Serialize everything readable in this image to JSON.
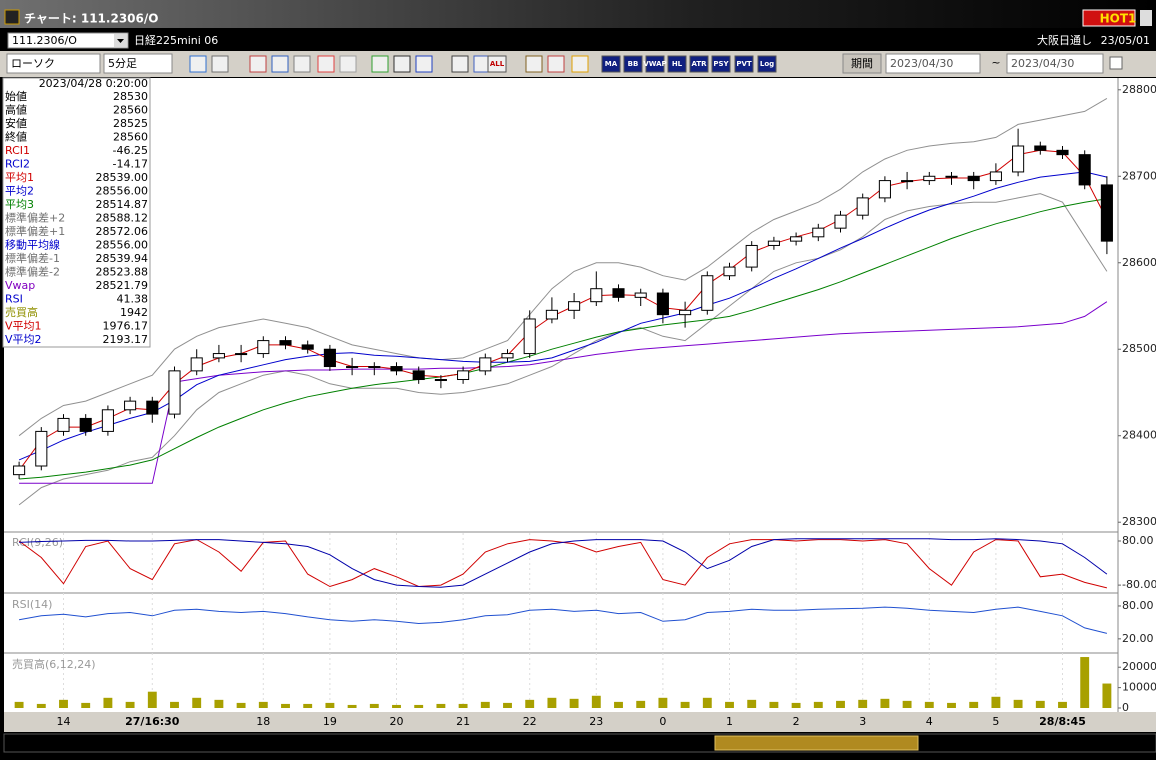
{
  "window": {
    "title": "チャート: 111.2306/O",
    "badge": "HOT1"
  },
  "symbol_bar": {
    "code": "111.2306/O",
    "name": "日経225mini 06",
    "session": "大阪日通し",
    "date": "23/05/01"
  },
  "toolbar": {
    "chart_style": "ローソク",
    "interval": "5分足",
    "buttons": [
      "ALL",
      "MA",
      "BB",
      "VWAP",
      "HL",
      "ATR",
      "PSY",
      "PVT",
      "Log"
    ],
    "period_button": "期間",
    "from": "2023/04/30",
    "separator": "~",
    "to": "2023/04/30"
  },
  "info_panel": {
    "time": "2023/04/28 0:20:00",
    "rows": [
      {
        "label": "始値",
        "value": "28530",
        "color": "#000000"
      },
      {
        "label": "高値",
        "value": "28560",
        "color": "#000000"
      },
      {
        "label": "安値",
        "value": "28525",
        "color": "#000000"
      },
      {
        "label": "終値",
        "value": "28560",
        "color": "#000000"
      },
      {
        "label": "RCI1",
        "value": "-46.25",
        "color": "#d00000"
      },
      {
        "label": "RCI2",
        "value": "-14.17",
        "color": "#0000cc"
      },
      {
        "label": "平均1",
        "value": "28539.00",
        "color": "#d00000"
      },
      {
        "label": "平均2",
        "value": "28556.00",
        "color": "#0000cc"
      },
      {
        "label": "平均3",
        "value": "28514.87",
        "color": "#008000"
      },
      {
        "label": "標準偏差+2",
        "value": "28588.12",
        "color": "#707070"
      },
      {
        "label": "標準偏差+1",
        "value": "28572.06",
        "color": "#707070"
      },
      {
        "label": "移動平均線",
        "value": "28556.00",
        "color": "#0000cc"
      },
      {
        "label": "標準偏差-1",
        "value": "28539.94",
        "color": "#707070"
      },
      {
        "label": "標準偏差-2",
        "value": "28523.88",
        "color": "#707070"
      },
      {
        "label": "Vwap",
        "value": "28521.79",
        "color": "#8000c0"
      },
      {
        "label": "RSI",
        "value": "41.38",
        "color": "#0000cc"
      },
      {
        "label": "売買高",
        "value": "1942",
        "color": "#909000"
      },
      {
        "label": "V平均1",
        "value": "1976.17",
        "color": "#d00000"
      },
      {
        "label": "V平均2",
        "value": "2193.17",
        "color": "#0000cc"
      }
    ]
  },
  "chart_data": [
    {
      "type": "candlestick",
      "categories": [
        null,
        null,
        "14",
        null,
        null,
        null,
        "27/16:30",
        null,
        null,
        null,
        null,
        "18",
        null,
        null,
        "19",
        null,
        null,
        "20",
        null,
        null,
        "21",
        null,
        null,
        "22",
        null,
        null,
        "23",
        null,
        null,
        "0",
        null,
        null,
        "1",
        null,
        null,
        "2",
        null,
        null,
        "3",
        null,
        null,
        "4",
        null,
        null,
        "5",
        null,
        null,
        "28/8:45",
        null,
        null
      ],
      "open": [
        28355,
        28365,
        28405,
        28420,
        28405,
        28430,
        28440,
        28425,
        28475,
        28490,
        28495,
        28495,
        28510,
        28505,
        28500,
        28480,
        28480,
        28480,
        28475,
        28465,
        28465,
        28475,
        28490,
        28495,
        28535,
        28545,
        28555,
        28570,
        28560,
        28565,
        28540,
        28545,
        28585,
        28595,
        28620,
        28625,
        28630,
        28640,
        28655,
        28675,
        28695,
        28695,
        28700,
        28700,
        28695,
        28705,
        28735,
        28730,
        28725,
        28690
      ],
      "high": [
        28370,
        28410,
        28425,
        28425,
        28435,
        28445,
        28445,
        28480,
        28500,
        28505,
        28505,
        28515,
        28515,
        28510,
        28505,
        28490,
        28485,
        28485,
        28480,
        28470,
        28480,
        28495,
        28500,
        28545,
        28560,
        28565,
        28590,
        28575,
        28570,
        28570,
        28555,
        28590,
        28600,
        28625,
        28630,
        28635,
        28645,
        28660,
        28680,
        28700,
        28705,
        28705,
        28705,
        28705,
        28715,
        28755,
        28740,
        28735,
        28730,
        28700
      ],
      "low": [
        28350,
        28360,
        28400,
        28400,
        28400,
        28425,
        28415,
        28420,
        28470,
        28485,
        28485,
        28490,
        28500,
        28495,
        28475,
        28470,
        28470,
        28470,
        28460,
        28455,
        28460,
        28470,
        28485,
        28490,
        28530,
        28535,
        28550,
        28555,
        28550,
        28530,
        28525,
        28540,
        28580,
        28590,
        28615,
        28620,
        28625,
        28635,
        28650,
        28670,
        28685,
        28690,
        28690,
        28685,
        28690,
        28700,
        28725,
        28720,
        28685,
        28610
      ],
      "close": [
        28365,
        28405,
        28420,
        28405,
        28430,
        28440,
        28425,
        28475,
        28490,
        28495,
        28495,
        28510,
        28505,
        28500,
        28480,
        28480,
        28480,
        28475,
        28465,
        28465,
        28475,
        28490,
        28495,
        28535,
        28545,
        28555,
        28570,
        28560,
        28565,
        28540,
        28545,
        28585,
        28595,
        28620,
        28625,
        28630,
        28640,
        28655,
        28675,
        28695,
        28695,
        28700,
        28700,
        28695,
        28705,
        28735,
        28730,
        28725,
        28690,
        28625
      ],
      "series": [
        {
          "color": "#909090",
          "values": [
            28400,
            28420,
            28435,
            28440,
            28450,
            28460,
            28470,
            28500,
            28515,
            28525,
            28530,
            28535,
            28530,
            28525,
            28515,
            28505,
            28500,
            28495,
            28490,
            28488,
            28490,
            28500,
            28510,
            28540,
            28570,
            28590,
            28600,
            28600,
            28595,
            28585,
            28580,
            28595,
            28615,
            28635,
            28650,
            28660,
            28670,
            28685,
            28705,
            28720,
            28730,
            28735,
            28738,
            28740,
            28745,
            28760,
            28765,
            28770,
            28775,
            28790
          ]
        },
        {
          "color": "#909090",
          "values": [
            28320,
            28340,
            28350,
            28355,
            28360,
            28370,
            28375,
            28400,
            28430,
            28450,
            28460,
            28470,
            28475,
            28470,
            28460,
            28455,
            28455,
            28455,
            28450,
            28448,
            28450,
            28455,
            28460,
            28470,
            28480,
            28495,
            28510,
            28520,
            28525,
            28515,
            28510,
            28530,
            28550,
            28570,
            28590,
            28600,
            28605,
            28615,
            28630,
            28650,
            28660,
            28665,
            28668,
            28670,
            28670,
            28675,
            28680,
            28670,
            28630,
            28590
          ]
        },
        {
          "color": "#7a00cc",
          "values": [
            28345,
            28345,
            28345,
            28345,
            28345,
            28345,
            28345,
            28462,
            28466,
            28470,
            28472,
            28474,
            28475,
            28476,
            28476,
            28477,
            28477,
            28477,
            28477,
            28478,
            28478,
            28479,
            28480,
            28482,
            28486,
            28490,
            28494,
            28497,
            28500,
            28502,
            28504,
            28506,
            28508,
            28510,
            28512,
            28514,
            28516,
            28518,
            28519,
            28520,
            28521,
            28522,
            28523,
            28524,
            28525,
            28526,
            28528,
            28530,
            28538,
            28555
          ]
        },
        {
          "color": "#008000",
          "values": [
            28350,
            28352,
            28355,
            28358,
            28362,
            28366,
            28372,
            28385,
            28398,
            28410,
            28420,
            28430,
            28438,
            28445,
            28450,
            28455,
            28459,
            28462,
            28465,
            28468,
            28472,
            28478,
            28485,
            28492,
            28500,
            28507,
            28514,
            28520,
            28524,
            28528,
            28531,
            28534,
            28538,
            28545,
            28553,
            28561,
            28569,
            28578,
            28588,
            28598,
            28608,
            28618,
            28628,
            28637,
            28645,
            28652,
            28659,
            28665,
            28670,
            28674
          ]
        },
        {
          "color": "#0000cc",
          "values": [
            28372,
            28383,
            28395,
            28404,
            28412,
            28420,
            28427,
            28441,
            28459,
            28470,
            28476,
            28482,
            28488,
            28492,
            28495,
            28496,
            28493,
            28492,
            28490,
            28488,
            28486,
            28485,
            28485,
            28486,
            28490,
            28499,
            28508,
            28519,
            28530,
            28536,
            28542,
            28551,
            28559,
            28570,
            28582,
            28593,
            28605,
            28617,
            28628,
            28640,
            28651,
            28661,
            28669,
            28677,
            28686,
            28693,
            28699,
            28702,
            28705,
            28699
          ]
        },
        {
          "color": "#d00000",
          "values": [
            28360,
            28395,
            28410,
            28410,
            28420,
            28432,
            28430,
            28460,
            28480,
            28490,
            28495,
            28505,
            28505,
            28500,
            28488,
            28480,
            28480,
            28477,
            28470,
            28468,
            28472,
            28483,
            28493,
            28520,
            28538,
            28550,
            28562,
            28563,
            28562,
            28548,
            28545,
            28575,
            28592,
            28612,
            28622,
            28630,
            28637,
            28650,
            28668,
            28688,
            28694,
            28697,
            28698,
            28698,
            28705,
            28725,
            28730,
            28728,
            28700,
            28650
          ]
        }
      ],
      "ylim": [
        28291,
        28809
      ],
      "yticks": [
        28800,
        28700,
        28600,
        28500,
        28400,
        28300
      ]
    },
    {
      "type": "line",
      "title": "RCI(9,26)",
      "series": [
        {
          "color": "#d00000",
          "values": [
            80,
            20,
            -75,
            60,
            80,
            -20,
            -60,
            70,
            85,
            40,
            -30,
            75,
            80,
            -40,
            -85,
            -60,
            -20,
            -50,
            -85,
            -80,
            -40,
            40,
            70,
            85,
            80,
            70,
            40,
            60,
            75,
            -60,
            -80,
            20,
            70,
            85,
            85,
            80,
            85,
            85,
            80,
            85,
            70,
            -20,
            -80,
            40,
            85,
            80,
            -50,
            -40,
            -70,
            -90
          ]
        },
        {
          "color": "#0000aa",
          "values": [
            75,
            78,
            80,
            82,
            82,
            80,
            80,
            82,
            85,
            85,
            80,
            75,
            70,
            60,
            30,
            -20,
            -60,
            -80,
            -85,
            -88,
            -80,
            -40,
            0,
            40,
            70,
            80,
            85,
            85,
            85,
            80,
            40,
            -20,
            10,
            60,
            85,
            88,
            88,
            88,
            88,
            88,
            88,
            88,
            85,
            85,
            88,
            85,
            80,
            70,
            20,
            -40
          ]
        }
      ],
      "ylim": [
        -105,
        109
      ],
      "yticks": [
        {
          "value": 80,
          "label": "80.00"
        },
        {
          "value": -80,
          "label": "-80.00"
        }
      ]
    },
    {
      "type": "line",
      "title": "RSI(14)",
      "series": [
        {
          "color": "#2050d0",
          "values": [
            55,
            62,
            65,
            60,
            66,
            68,
            62,
            72,
            74,
            70,
            68,
            70,
            66,
            60,
            55,
            52,
            55,
            52,
            48,
            50,
            55,
            62,
            64,
            72,
            74,
            70,
            72,
            66,
            68,
            52,
            55,
            68,
            70,
            74,
            72,
            72,
            74,
            75,
            76,
            78,
            76,
            72,
            70,
            68,
            74,
            78,
            70,
            62,
            40,
            30
          ]
        }
      ],
      "ylim": [
        -4,
        100
      ],
      "yticks": [
        {
          "value": 80,
          "label": "80.00"
        },
        {
          "value": 20,
          "label": "20.00"
        }
      ]
    },
    {
      "type": "bar",
      "title": "売買高(6,12,24)",
      "color": "#a8a000",
      "values": [
        3000,
        2000,
        4000,
        2500,
        5000,
        3000,
        8000,
        3000,
        5000,
        4000,
        2500,
        3000,
        2000,
        2000,
        2500,
        1500,
        2000,
        1500,
        1500,
        2000,
        2000,
        3000,
        2500,
        4000,
        5000,
        4500,
        6000,
        3000,
        3500,
        5000,
        3000,
        5000,
        3000,
        4000,
        3000,
        2500,
        3000,
        3500,
        4000,
        4500,
        3500,
        3000,
        2500,
        3000,
        5500,
        4000,
        3500,
        3000,
        25000,
        12000
      ],
      "ylim": [
        0,
        26000
      ],
      "yticks": [
        20000,
        10000,
        0
      ]
    }
  ]
}
